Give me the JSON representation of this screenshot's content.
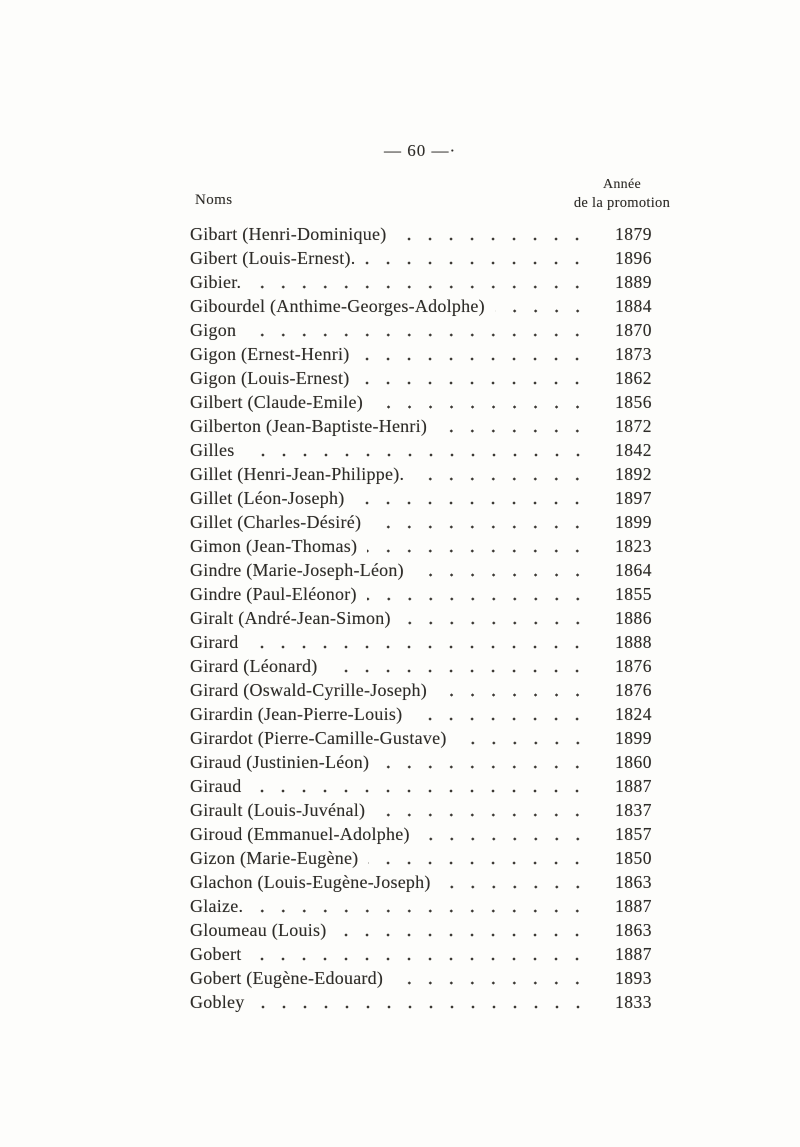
{
  "page": {
    "number_label": "— 60 —·"
  },
  "table": {
    "name_header": "Noms",
    "year_header_line1": "Année",
    "year_header_line2": "de la promotion",
    "rows": [
      {
        "name": "Gibart (Henri-Dominique)",
        "year": "1879"
      },
      {
        "name": "Gibert (Louis-Ernest).",
        "year": "1896"
      },
      {
        "name": "Gibier.",
        "year": "1889"
      },
      {
        "name": "Gibourdel (Anthime-Georges-Adolphe)",
        "year": "1884"
      },
      {
        "name": "Gigon",
        "year": "1870"
      },
      {
        "name": "Gigon (Ernest-Henri)",
        "year": "1873"
      },
      {
        "name": "Gigon (Louis-Ernest)",
        "year": "1862"
      },
      {
        "name": "Gilbert (Claude-Emile)",
        "year": "1856"
      },
      {
        "name": "Gilberton (Jean-Baptiste-Henri)",
        "year": "1872"
      },
      {
        "name": "Gilles",
        "year": "1842"
      },
      {
        "name": "Gillet (Henri-Jean-Philippe).",
        "year": "1892"
      },
      {
        "name": "Gillet (Léon-Joseph)",
        "year": "1897"
      },
      {
        "name": "Gillet (Charles-Désiré)",
        "year": "1899"
      },
      {
        "name": "Gimon (Jean-Thomas)",
        "year": "1823"
      },
      {
        "name": "Gindre (Marie-Joseph-Léon)",
        "year": "1864"
      },
      {
        "name": "Gindre (Paul-Eléonor)",
        "year": "1855"
      },
      {
        "name": "Giralt (André-Jean-Simon)",
        "year": "1886"
      },
      {
        "name": "Girard",
        "year": "1888"
      },
      {
        "name": "Girard (Léonard)",
        "year": "1876"
      },
      {
        "name": "Girard (Oswald-Cyrille-Joseph)",
        "year": "1876"
      },
      {
        "name": "Girardin (Jean-Pierre-Louis)",
        "year": "1824"
      },
      {
        "name": "Girardot (Pierre-Camille-Gustave)",
        "year": "1899"
      },
      {
        "name": "Giraud (Justinien-Léon)",
        "year": "1860"
      },
      {
        "name": "Giraud",
        "year": "1887"
      },
      {
        "name": "Girault (Louis-Juvénal)",
        "year": "1837"
      },
      {
        "name": "Giroud (Emmanuel-Adolphe)",
        "year": "1857"
      },
      {
        "name": "Gizon (Marie-Eugène)",
        "year": "1850"
      },
      {
        "name": "Glachon (Louis-Eugène-Joseph)",
        "year": "1863"
      },
      {
        "name": "Glaize.",
        "year": "1887"
      },
      {
        "name": "Gloumeau (Louis)",
        "year": "1863"
      },
      {
        "name": "Gobert",
        "year": "1887"
      },
      {
        "name": "Gobert (Eugène-Edouard)",
        "year": "1893"
      },
      {
        "name": "Gobley",
        "year": "1833"
      }
    ]
  },
  "colors": {
    "paper": "#fdfdfb",
    "ink": "#2e2c28",
    "dot": "#3b3833"
  }
}
